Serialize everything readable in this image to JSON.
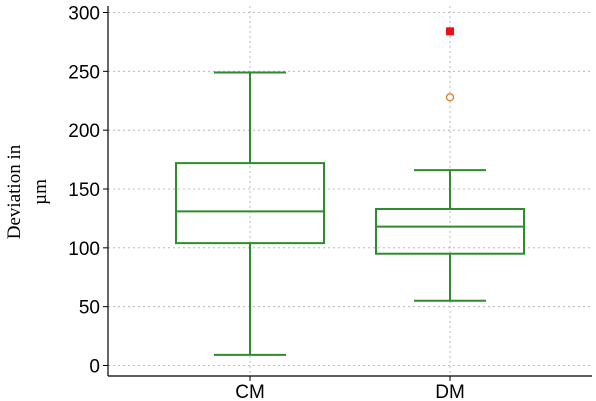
{
  "chart_data": {
    "type": "box",
    "title": "",
    "xlabel": "",
    "ylabel_lines": [
      "Deviation in",
      "µm"
    ],
    "ylim": [
      -8,
      302
    ],
    "yticks": [
      0,
      50,
      100,
      150,
      200,
      250,
      300
    ],
    "categories": [
      "CM",
      "DM"
    ],
    "grid": "dotted",
    "colors": {
      "box": "#2e8b2e",
      "outlier_open": "#e07a1f",
      "outlier_far": "#ee1111"
    },
    "boxes": [
      {
        "category": "CM",
        "whisker_low": 9,
        "q1": 104,
        "median": 131,
        "q3": 172,
        "whisker_high": 249,
        "outliers": []
      },
      {
        "category": "DM",
        "whisker_low": 55,
        "q1": 95,
        "median": 118,
        "q3": 133,
        "whisker_high": 166,
        "outliers": [
          {
            "value": 228,
            "kind": "open-circle"
          },
          {
            "value": 284,
            "kind": "filled-square"
          }
        ]
      }
    ]
  }
}
